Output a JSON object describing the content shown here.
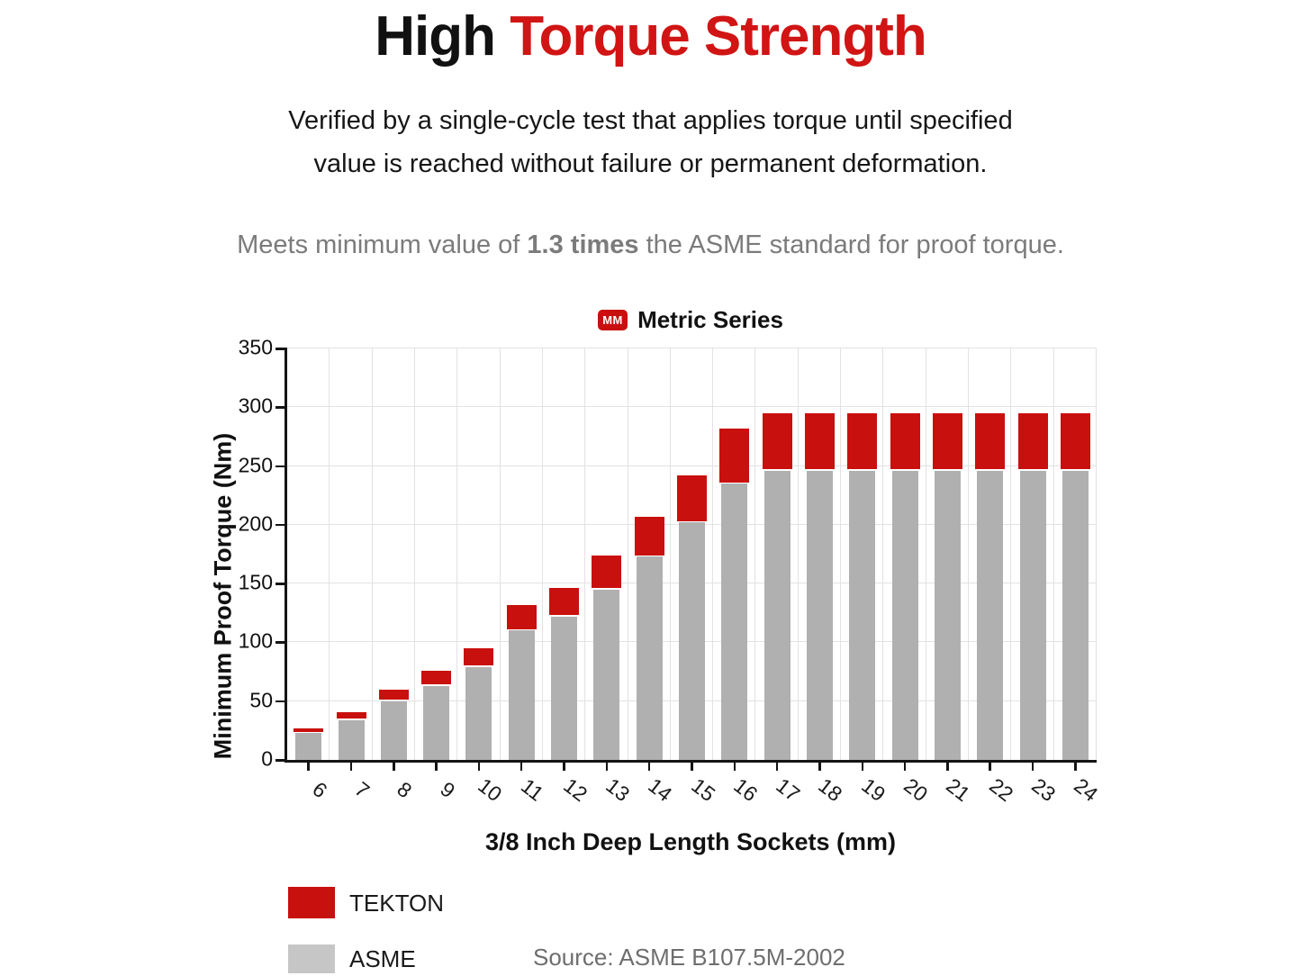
{
  "header": {
    "title_black": "High ",
    "title_red": "Torque Strength",
    "subtitle_line1": "Verified by a single-cycle test that applies torque until specified",
    "subtitle_line2": "value is reached without failure or permanent deformation.",
    "meets_prefix": "Meets minimum value of ",
    "meets_bold": "1.3 times",
    "meets_suffix": " the ASME standard for proof torque."
  },
  "chart_data": {
    "type": "bar",
    "title": "Metric Series",
    "title_badge": "MM",
    "xlabel": "3/8 Inch Deep Length Sockets (mm)",
    "ylabel": "Minimum Proof Torque (Nm)",
    "categories": [
      "6",
      "7",
      "8",
      "9",
      "10",
      "11",
      "12",
      "13",
      "14",
      "15",
      "16",
      "17",
      "18",
      "19",
      "20",
      "21",
      "22",
      "23",
      "24"
    ],
    "series": [
      {
        "name": "TEKTON",
        "color": "#c8100e",
        "values": [
          27,
          41,
          60,
          76,
          95,
          132,
          146,
          174,
          207,
          242,
          282,
          295,
          295,
          295,
          295,
          295,
          295,
          295,
          295
        ]
      },
      {
        "name": "ASME",
        "color": "#b0b0b0",
        "values": [
          23,
          34,
          50,
          63,
          79,
          110,
          122,
          145,
          173,
          202,
          235,
          246,
          246,
          246,
          246,
          246,
          246,
          246,
          246
        ]
      }
    ],
    "ylim": [
      0,
      350
    ],
    "yticks": [
      0,
      50,
      100,
      150,
      200,
      250,
      300,
      350
    ],
    "grid": true,
    "bar_render": "TEKTON total bar with ASME bar overlaid in front; visible red cap = TEKTON minus ASME",
    "legend_position": "bottom-left"
  },
  "legend": {
    "items": [
      {
        "label": "TEKTON",
        "color": "#c8100e"
      },
      {
        "label": "ASME",
        "color": "#c6c6c6"
      }
    ]
  },
  "source": {
    "text": "Source: ASME B107.5M-2002"
  },
  "colors": {
    "title_red": "#d11414",
    "badge_red": "#c8100e",
    "axis": "#141414",
    "grid": "#e2e2e2",
    "text_gray": "#7b7b7b",
    "source_gray": "#6e6e6e"
  }
}
